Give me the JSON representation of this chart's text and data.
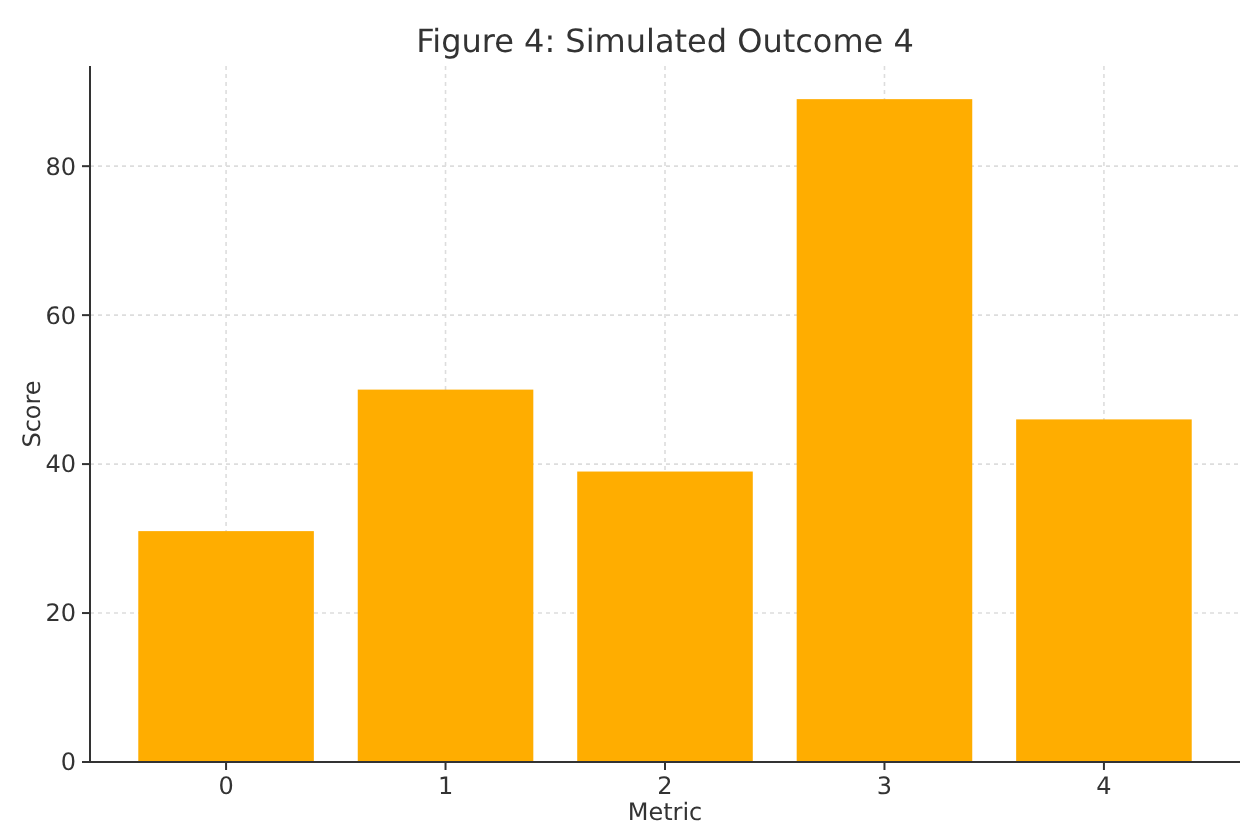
{
  "chart_data": {
    "type": "bar",
    "title": "Figure 4: Simulated Outcome 4",
    "xlabel": "Metric",
    "ylabel": "Score",
    "categories": [
      "0",
      "1",
      "2",
      "3",
      "4"
    ],
    "values": [
      31,
      50,
      39,
      89,
      46
    ],
    "color": "#ffad00",
    "ylim": [
      0,
      93.45
    ],
    "yticks": [
      0,
      20,
      40,
      60,
      80
    ],
    "grid": true
  }
}
